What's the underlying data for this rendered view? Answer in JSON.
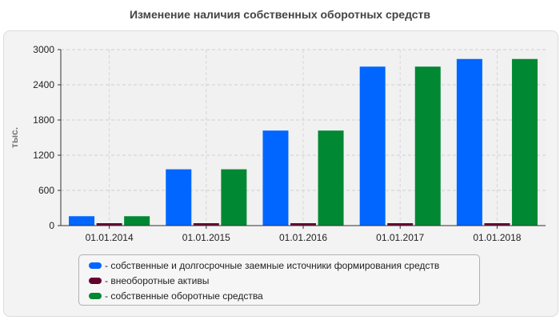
{
  "chart_data": {
    "type": "bar",
    "title": "Изменение наличия собственных оборотных средств",
    "ylabel": "тыс.",
    "xlabel": "",
    "categories": [
      "01.01.2014",
      "01.01.2015",
      "01.01.2016",
      "01.01.2017",
      "01.01.2018"
    ],
    "ylim": [
      0,
      3000
    ],
    "yticks": [
      0,
      600,
      1200,
      1800,
      2400,
      3000
    ],
    "grid": true,
    "legend_position": "bottom",
    "series": [
      {
        "name": "- собственные и долгосрочные заемные источники формирования средств",
        "color": "#0066ff",
        "values": [
          160,
          960,
          1620,
          2710,
          2840
        ]
      },
      {
        "name": "- внеоборотные активы",
        "color": "#660033",
        "values": [
          10,
          10,
          10,
          10,
          10
        ]
      },
      {
        "name": "- собственные оборотные средства",
        "color": "#008833",
        "values": [
          160,
          960,
          1620,
          2710,
          2840
        ]
      }
    ]
  }
}
